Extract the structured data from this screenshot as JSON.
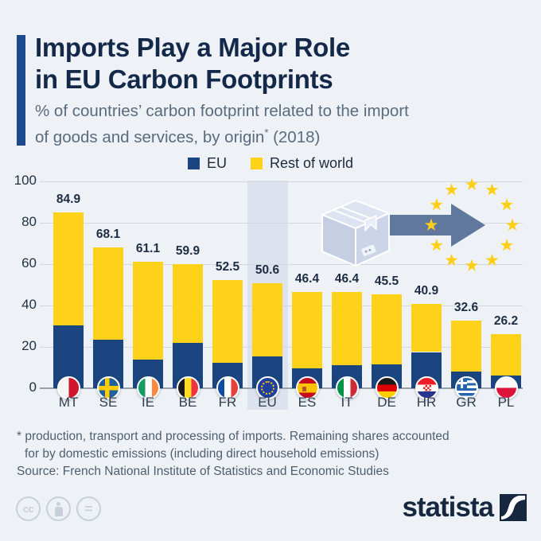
{
  "header": {
    "title_line1": "Imports Play a Major Role",
    "title_line2": "in EU Carbon Footprints",
    "subtitle_line1": "% of countries’ carbon footprint related to the import",
    "subtitle_line2_pre": "of goods and services, by origin",
    "subtitle_sup": "*",
    "subtitle_line2_post": " (2018)"
  },
  "legend": [
    {
      "label": "EU",
      "color": "#1b4580"
    },
    {
      "label": "Rest of world",
      "color": "#ffd21a"
    }
  ],
  "chart_data": {
    "type": "bar",
    "stacked": true,
    "title": "Imports Play a Major Role in EU Carbon Footprints",
    "categories": [
      "MT",
      "SE",
      "IE",
      "BE",
      "FR",
      "EU",
      "ES",
      "IT",
      "DE",
      "HR",
      "GR",
      "PL"
    ],
    "totals": [
      84.9,
      68.1,
      61.1,
      59.9,
      52.5,
      50.6,
      46.4,
      46.4,
      45.5,
      40.9,
      32.6,
      26.2
    ],
    "series": [
      {
        "name": "EU",
        "color": "#1b4580",
        "values": [
          30.5,
          23.5,
          14,
          22,
          12.5,
          15.5,
          9.5,
          11,
          11.5,
          17.5,
          8,
          6
        ]
      },
      {
        "name": "Rest of world",
        "color": "#ffd21a",
        "values": [
          54.4,
          44.6,
          47.1,
          37.9,
          40.0,
          35.1,
          36.9,
          35.4,
          34.0,
          23.4,
          24.6,
          20.2
        ]
      }
    ],
    "ylim": [
      0,
      100
    ],
    "yticks": [
      0,
      20,
      40,
      60,
      80,
      100
    ],
    "grid": true,
    "legend_position": "top",
    "highlighted_category": "EU",
    "value_labels": true
  },
  "colors": {
    "background": "#eef2f6",
    "accent_navy": "#1d4a8c",
    "bar_blue": "#1b4580",
    "bar_yellow": "#ffd21a",
    "highlight_band": "#dce3ee",
    "star_yellow": "#ffcf16",
    "arrow_blue": "#60779e"
  },
  "footnote": {
    "line1": "* production, transport and processing of imports. Remaining shares accounted",
    "line2": "for by domestic emissions (including direct household emissions)"
  },
  "source": "Source: French National Institute of Statistics and Economic Studies",
  "footer": {
    "brand": "statista",
    "cc_label": "cc",
    "cc_equals": "="
  }
}
